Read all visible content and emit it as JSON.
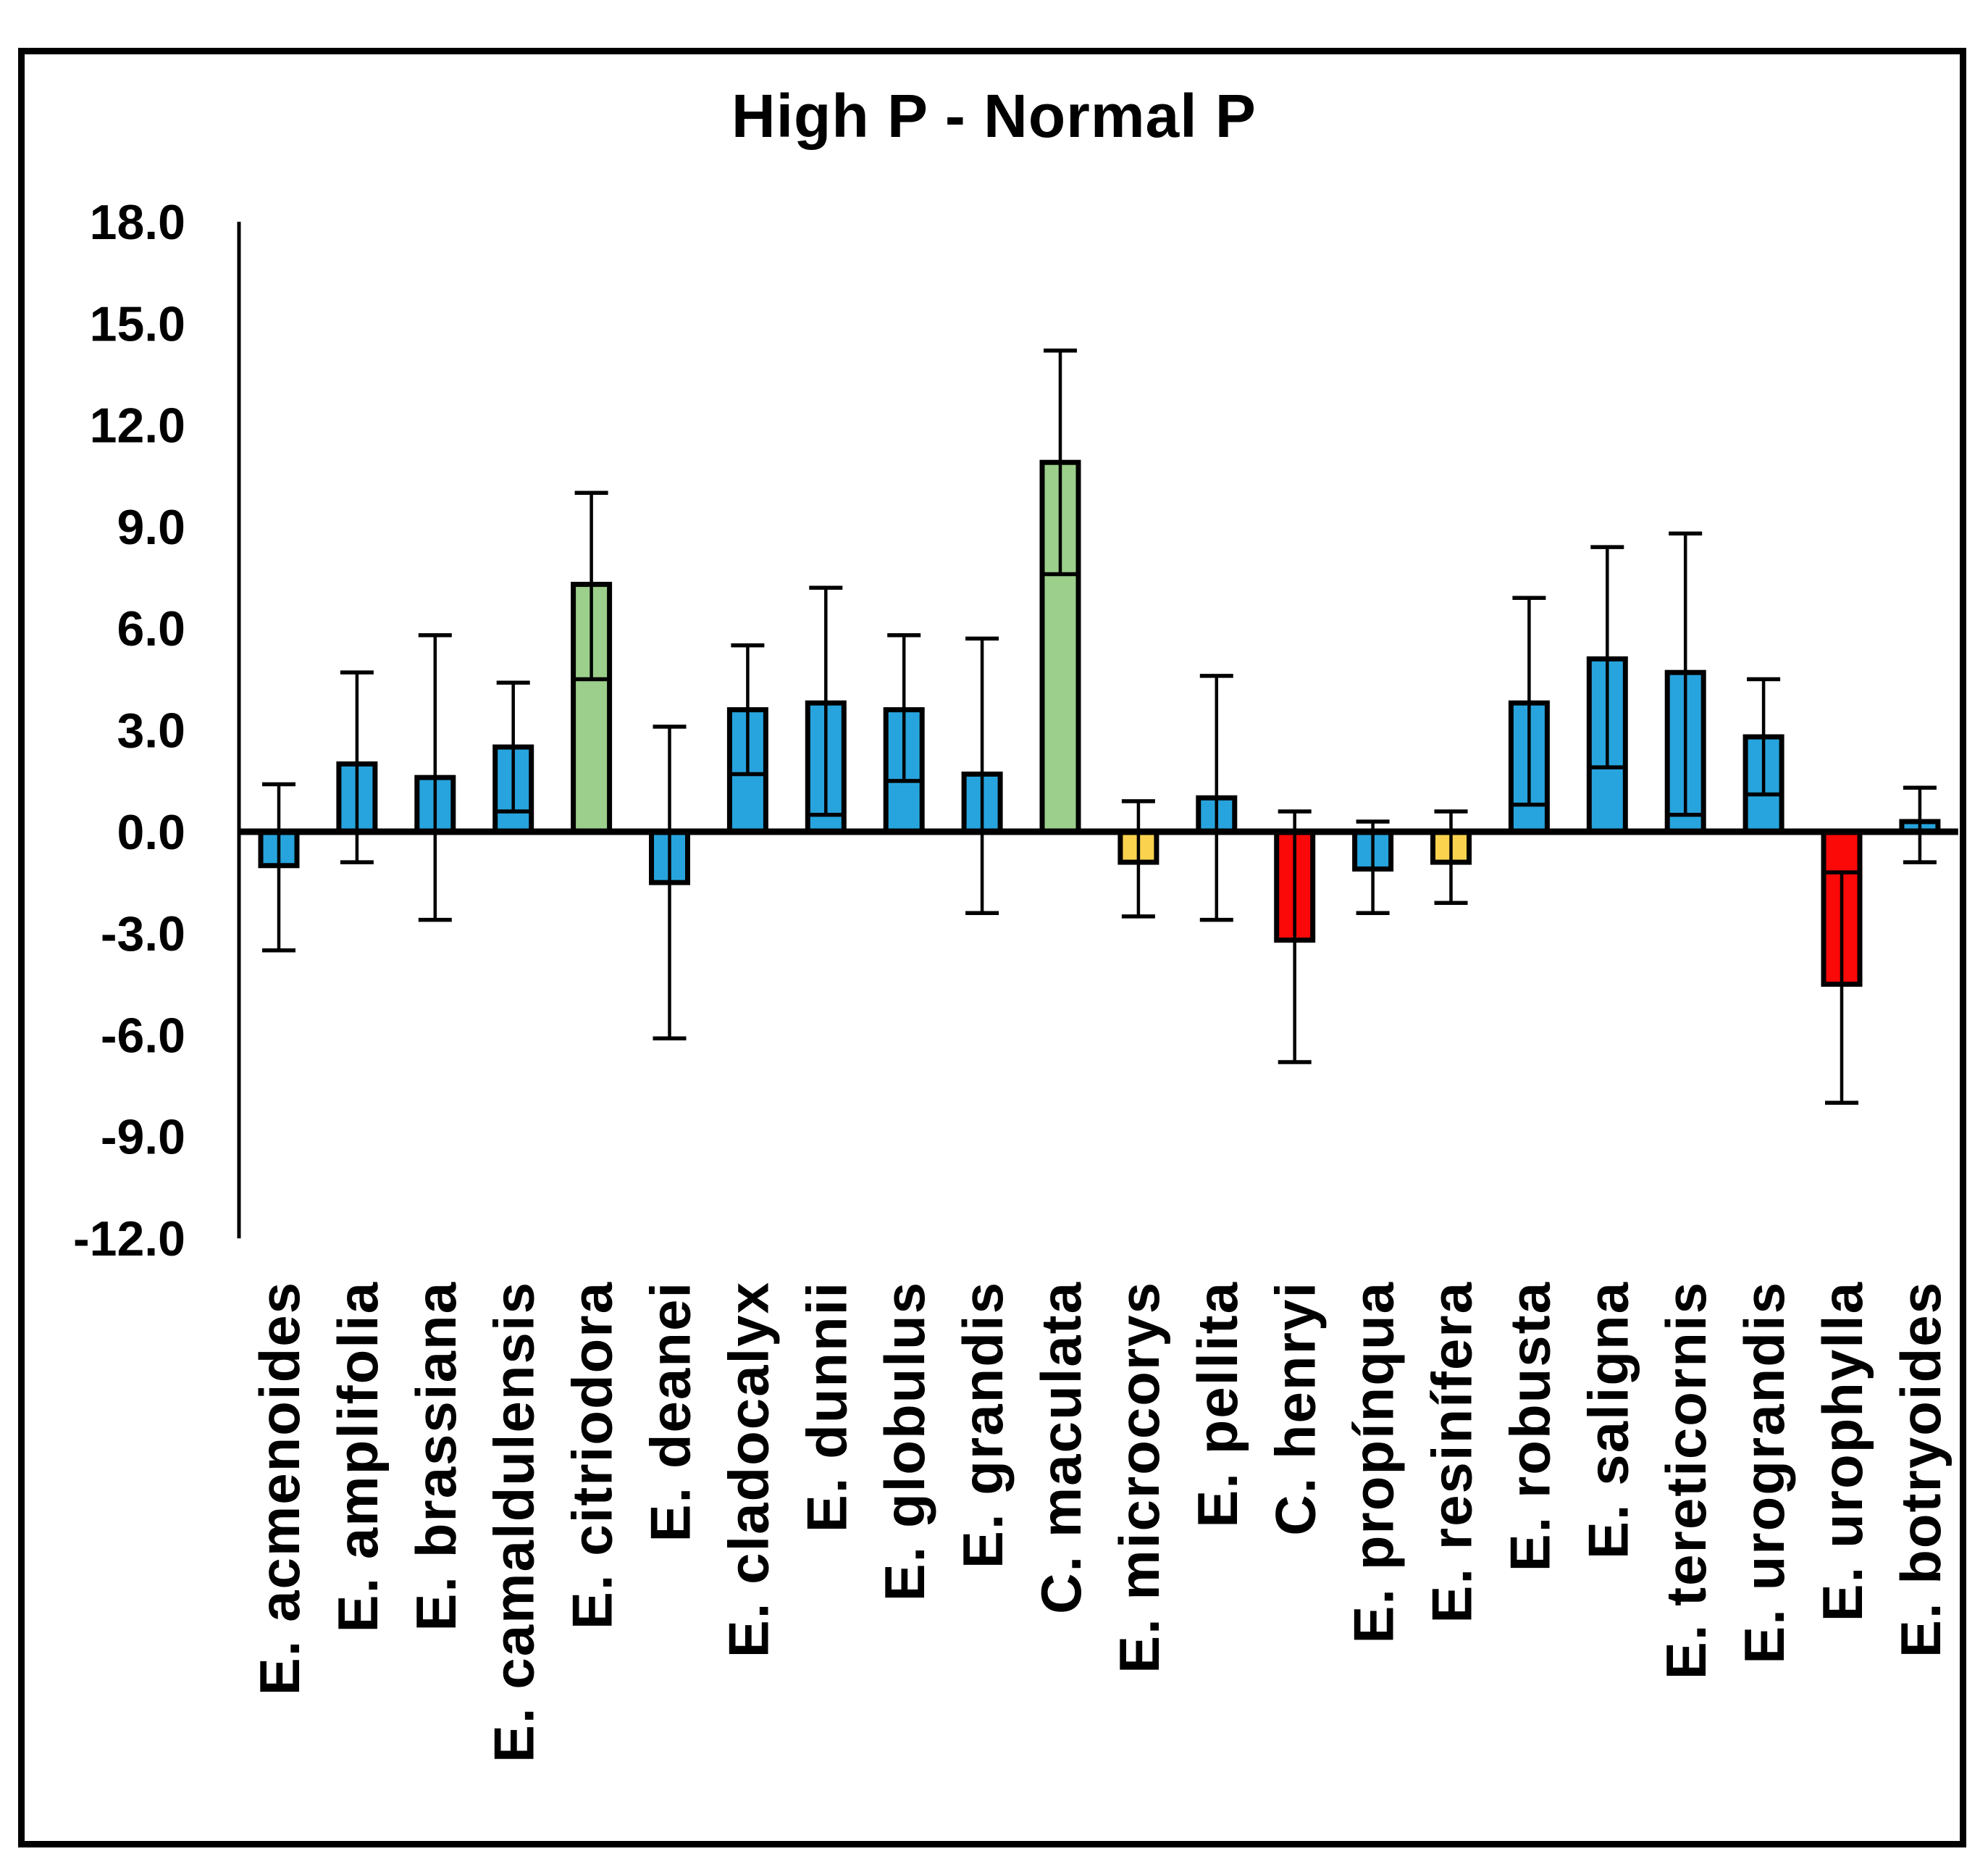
{
  "chart_data": {
    "type": "bar",
    "title": "High P - Normal P",
    "xlabel": "",
    "ylabel": "",
    "ylim": [
      -12.0,
      18.0
    ],
    "grid": false,
    "legend": false,
    "ytick_values": [
      18,
      15,
      12,
      9,
      6,
      3,
      0,
      -3,
      -6,
      -9,
      -12
    ],
    "ytick_labels": [
      "18.0",
      "15.0",
      "12.0",
      "9.0",
      "6.0",
      "3.0",
      "0.0",
      "-3.0",
      "-6.0",
      "-9.0",
      "-12.0"
    ],
    "categories": [
      "E. acmenoides",
      "E. amplifolia",
      "E. brassiana",
      "E. camaldulensis",
      "E. citriodora",
      "E. deanei",
      "E. cladocalyx",
      "E. dunnii",
      "E. globulus",
      "E. grandis",
      "C. maculata",
      "E. microcorys",
      "E. pellita",
      "C. henryi",
      "E. propínqua",
      "E. resinífera",
      "E. robusta",
      "E. saligna",
      "E. tereticornis",
      "E. urograndis",
      "E. urophylla",
      "E. botryoides"
    ],
    "values": [
      -1.0,
      2.0,
      1.6,
      2.5,
      7.3,
      -1.5,
      3.6,
      3.8,
      3.6,
      1.7,
      10.9,
      -0.9,
      1.0,
      -3.2,
      -1.1,
      -0.9,
      3.8,
      5.1,
      4.7,
      2.8,
      -4.5,
      0.3
    ],
    "error_high": [
      1.4,
      4.7,
      5.8,
      4.4,
      10.0,
      3.1,
      5.5,
      7.2,
      5.8,
      5.7,
      14.2,
      0.9,
      4.6,
      0.6,
      0.3,
      0.6,
      6.9,
      8.4,
      8.8,
      4.5,
      -1.2,
      1.3
    ],
    "error_low": [
      -3.5,
      -0.9,
      -2.6,
      0.6,
      4.5,
      -6.1,
      1.7,
      0.5,
      1.5,
      -2.4,
      7.6,
      -2.5,
      -2.6,
      -6.8,
      -2.4,
      -2.1,
      0.8,
      1.9,
      0.5,
      1.1,
      -8.0,
      -0.9
    ],
    "bar_color_keys": [
      "blue",
      "blue",
      "blue",
      "blue",
      "green",
      "blue",
      "blue",
      "blue",
      "blue",
      "blue",
      "green",
      "yellow",
      "blue",
      "red",
      "blue",
      "yellow",
      "blue",
      "blue",
      "blue",
      "blue",
      "red",
      "blue"
    ]
  },
  "colors": {
    "blue": "#27A4DD",
    "green": "#9CCF8B",
    "yellow": "#FBD24E",
    "red": "#FB0808",
    "axis": "#000000",
    "background": "#FFFFFF"
  }
}
